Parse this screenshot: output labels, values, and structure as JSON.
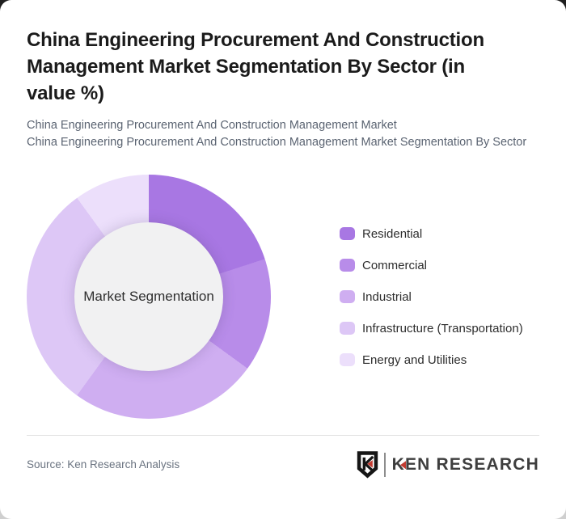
{
  "header": {
    "title": "China Engineering Procurement And Construction Management Market Segmentation By Sector (in value %)",
    "subtitle_line1": "China Engineering Procurement And Construction Management Market",
    "subtitle_line2": "China Engineering Procurement And Construction Management Market Segmentation By Sector"
  },
  "chart_data": {
    "type": "pie",
    "subtype": "donut",
    "title": "China Engineering Procurement And Construction Management Market Segmentation By Sector (in value %)",
    "center_label": "Market Segmentation",
    "categories": [
      "Residential",
      "Commercial",
      "Industrial",
      "Infrastructure (Transportation)",
      "Energy and Utilities"
    ],
    "values": [
      20,
      15,
      25,
      30,
      10
    ],
    "unit": "%",
    "values_estimated_from_arc_angles": true,
    "colors": [
      "#a877e3",
      "#b88ce9",
      "#cfaef1",
      "#ddc7f6",
      "#ecdffb"
    ],
    "hole_color": "#f1f1f2",
    "legend_position": "right",
    "start_angle_deg": 0,
    "direction": "clockwise"
  },
  "footer": {
    "source": "Source: Ken Research Analysis",
    "logo": {
      "brand_first_letter": "K",
      "brand_rest": "EN RESEARCH",
      "badge_letter": "K",
      "accent_color": "#c23b31"
    }
  }
}
